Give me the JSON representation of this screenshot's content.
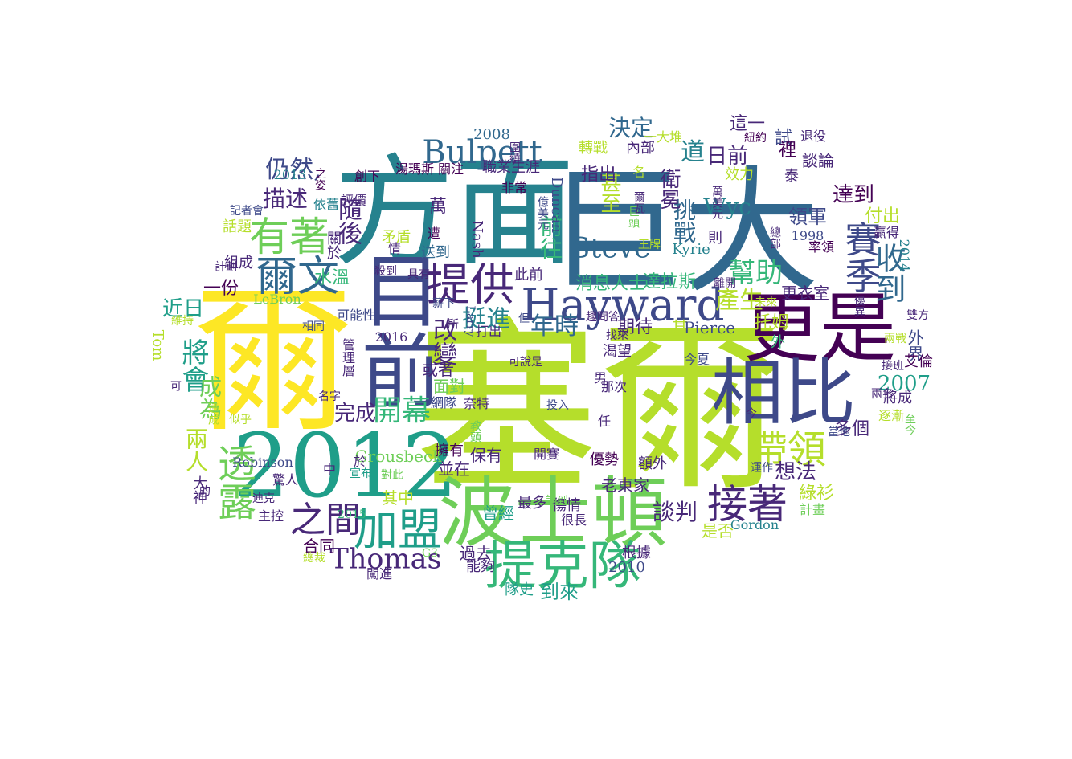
{
  "palette": [
    "#440154",
    "#482878",
    "#3e4989",
    "#31688e",
    "#26828e",
    "#1f9e89",
    "#35b779",
    "#6ece58",
    "#b5de2b",
    "#fde725"
  ],
  "words": [
    {
      "t": "塞爾",
      "c": "#b5de2b"
    },
    {
      "t": "爾",
      "c": "#fde725"
    },
    {
      "t": "巨大",
      "c": "#31688e"
    },
    {
      "t": "方面",
      "c": "#26828e"
    },
    {
      "t": "2012",
      "c": "#1f9e89"
    },
    {
      "t": "波士頓",
      "c": "#6ece58"
    },
    {
      "t": "目前",
      "c": "#3e4989"
    },
    {
      "t": "更是",
      "c": "#440154"
    },
    {
      "t": "相比",
      "c": "#3e4989"
    },
    {
      "t": "Hayward",
      "c": "#3e4989"
    },
    {
      "t": "提克隊",
      "c": "#35b779"
    },
    {
      "t": "提供",
      "c": "#482878"
    },
    {
      "t": "加盟",
      "c": "#1f9e89"
    },
    {
      "t": "爾文",
      "c": "#31688e"
    },
    {
      "t": "有著",
      "c": "#6ece58"
    },
    {
      "t": "接著",
      "c": "#482878"
    },
    {
      "t": "帶領",
      "c": "#b5de2b"
    },
    {
      "t": "之間",
      "c": "#482878"
    },
    {
      "t": "Thomas",
      "c": "#482878"
    },
    {
      "t": "透露",
      "c": "#6ece58"
    },
    {
      "t": "賽季",
      "c": "#3e4989"
    },
    {
      "t": "收到",
      "c": "#31688e"
    },
    {
      "t": "Bulpett",
      "c": "#31688e"
    },
    {
      "t": "Steve",
      "c": "#31688e"
    },
    {
      "t": "開幕",
      "c": "#35b779"
    },
    {
      "t": "幫助",
      "c": "#35b779"
    },
    {
      "t": "挺進",
      "c": "#26828e"
    },
    {
      "t": "年時",
      "c": "#31688e"
    },
    {
      "t": "改變",
      "c": "#482878"
    },
    {
      "t": "產生",
      "c": "#b5de2b"
    },
    {
      "t": "將會",
      "c": "#1f9e89"
    },
    {
      "t": "仍然,",
      "c": "#3e4989"
    },
    {
      "t": "描述",
      "c": "#482878"
    },
    {
      "t": "隨後",
      "c": "#482878"
    },
    {
      "t": "挑戰",
      "c": "#31688e"
    },
    {
      "t": "道",
      "c": "#26828e"
    },
    {
      "t": "日前",
      "c": "#482878"
    },
    {
      "t": "Wyc",
      "c": "#26828e"
    },
    {
      "t": "衛冕",
      "c": "#482878"
    },
    {
      "t": "決定",
      "c": "#31688e"
    },
    {
      "t": "甚至",
      "c": "#b5de2b"
    },
    {
      "t": "前往",
      "c": "#35b779"
    },
    {
      "t": "完成",
      "c": "#482878"
    },
    {
      "t": "2007",
      "c": "#1f9e89"
    },
    {
      "t": "談判",
      "c": "#482878"
    },
    {
      "t": "兩人",
      "c": "#b5de2b"
    },
    {
      "t": "成為",
      "c": "#6ece58"
    },
    {
      "t": "近日",
      "c": "#1f9e89"
    },
    {
      "t": "一份",
      "c": "#440154"
    },
    {
      "t": "水溫",
      "c": "#35b779"
    },
    {
      "t": "萬",
      "c": "#482878"
    },
    {
      "t": "指出",
      "c": "#482878"
    },
    {
      "t": "試",
      "c": "#3e4989"
    },
    {
      "t": "這一",
      "c": "#482878"
    },
    {
      "t": "裡",
      "c": "#440154"
    },
    {
      "t": "談論",
      "c": "#482878"
    },
    {
      "t": "達到",
      "c": "#440154"
    },
    {
      "t": "領軍",
      "c": "#3e4989"
    },
    {
      "t": "付出",
      "c": "#b5de2b"
    },
    {
      "t": "消息人士",
      "c": "#35b779"
    },
    {
      "t": "達拉斯",
      "c": "#35b779"
    },
    {
      "t": "更衣室",
      "c": "#482878"
    },
    {
      "t": "期待",
      "c": "#482878"
    },
    {
      "t": "基",
      "c": "#b5de2b"
    },
    {
      "t": "Pierce",
      "c": "#3e4989"
    },
    {
      "t": "托姆",
      "c": "#b5de2b"
    },
    {
      "t": "外界",
      "c": "#3e4989"
    },
    {
      "t": "想法",
      "c": "#482878"
    },
    {
      "t": "多個",
      "c": "#482878"
    },
    {
      "t": "合同",
      "c": "#440154"
    },
    {
      "t": "保有",
      "c": "#482878"
    },
    {
      "t": "曾經",
      "c": "#1f9e89"
    },
    {
      "t": "老東家",
      "c": "#482878"
    },
    {
      "t": "是否",
      "c": "#b5de2b"
    },
    {
      "t": "綠衫",
      "c": "#b5de2b"
    },
    {
      "t": "過去",
      "c": "#482878"
    },
    {
      "t": "能夠",
      "c": "#482878"
    },
    {
      "t": "到來",
      "c": "#1f9e89"
    },
    {
      "t": "隊史",
      "c": "#1f9e89"
    },
    {
      "t": "2010",
      "c": "#3e4989"
    },
    {
      "t": "根據",
      "c": "#482878"
    },
    {
      "t": "其中",
      "c": "#b5de2b"
    },
    {
      "t": "Grousbeck",
      "c": "#6ece58"
    },
    {
      "t": "並在",
      "c": "#482878"
    },
    {
      "t": "擁有",
      "c": "#440154"
    },
    {
      "t": "優勢",
      "c": "#440154"
    },
    {
      "t": "額外",
      "c": "#482878"
    },
    {
      "t": "傷情",
      "c": "#482878"
    },
    {
      "t": "最多",
      "c": "#482878"
    },
    {
      "t": "面對",
      "c": "#6ece58"
    },
    {
      "t": "或者",
      "c": "#482878"
    },
    {
      "t": "此前",
      "c": "#482878"
    },
    {
      "t": "Nash",
      "c": "#482878"
    },
    {
      "t": "Duncan",
      "c": "#3e4989"
    },
    {
      "t": "Kyrie",
      "c": "#26828e"
    },
    {
      "t": "則",
      "c": "#482878"
    },
    {
      "t": "泰",
      "c": "#482878"
    },
    {
      "t": "1998",
      "c": "#3e4989"
    },
    {
      "t": "2014",
      "c": "#26828e"
    },
    {
      "t": "Gordon",
      "c": "#26828e"
    },
    {
      "t": "2016",
      "c": "#482878"
    },
    {
      "t": "2008",
      "c": "#31688e"
    },
    {
      "t": "Tom",
      "c": "#b5de2b"
    },
    {
      "t": "LeBron",
      "c": "#6ece58"
    },
    {
      "t": "Robinson",
      "c": "#3e4989"
    },
    {
      "t": "大神",
      "c": "#482878"
    },
    {
      "t": "話題",
      "c": "#b5de2b"
    },
    {
      "t": "組成",
      "c": "#482878"
    },
    {
      "t": "矛盾",
      "c": "#b5de2b"
    },
    {
      "t": "送到",
      "c": "#31688e"
    },
    {
      "t": "關於",
      "c": "#482878"
    },
    {
      "t": "渴望",
      "c": "#482878"
    },
    {
      "t": "效力",
      "c": "#b5de2b"
    },
    {
      "t": "退役",
      "c": "#482878"
    },
    {
      "t": "率領",
      "c": "#440154"
    },
    {
      "t": "贏得",
      "c": "#482878"
    },
    {
      "t": "將成",
      "c": "#482878"
    },
    {
      "t": "艾倫",
      "c": "#440154"
    },
    {
      "t": "逐漸",
      "c": "#b5de2b"
    },
    {
      "t": "至今",
      "c": "#6ece58"
    },
    {
      "t": "計畫",
      "c": "#6ece58"
    },
    {
      "t": "轉戰",
      "c": "#b5de2b"
    },
    {
      "t": "內部",
      "c": "#482878"
    },
    {
      "t": "職業生涯",
      "c": "#482878"
    },
    {
      "t": "湯瑪斯",
      "c": "#440154"
    },
    {
      "t": "關注",
      "c": "#440154"
    },
    {
      "t": "非常",
      "c": "#440154"
    },
    {
      "t": "2013",
      "c": "#26828e"
    },
    {
      "t": "創下",
      "c": "#440154"
    },
    {
      "t": "之姿",
      "c": "#440154"
    },
    {
      "t": "記者會",
      "c": "#3e4989"
    },
    {
      "t": "評價",
      "c": "#482878"
    },
    {
      "t": "依舊",
      "c": "#26828e"
    },
    {
      "t": "遭",
      "c": "#440154"
    },
    {
      "t": "情",
      "c": "#482878"
    },
    {
      "t": "殺到",
      "c": "#482878"
    },
    {
      "t": "具有",
      "c": "#482878"
    },
    {
      "t": "可能性",
      "c": "#3e4989"
    },
    {
      "t": "打出",
      "c": "#482878"
    },
    {
      "t": "管理層",
      "c": "#482878"
    },
    {
      "t": "名字",
      "c": "#482878"
    },
    {
      "t": "網隊",
      "c": "#3e4989"
    },
    {
      "t": "奈特",
      "c": "#482878"
    },
    {
      "t": "可說是",
      "c": "#482878"
    },
    {
      "t": "投入",
      "c": "#3e4989"
    },
    {
      "t": "談到",
      "c": "#6ece58"
    },
    {
      "t": "開賽",
      "c": "#482878"
    },
    {
      "t": "男",
      "c": "#482878"
    },
    {
      "t": "那次",
      "c": "#482878"
    },
    {
      "t": "任",
      "c": "#482878"
    },
    {
      "t": "很長",
      "c": "#482878"
    },
    {
      "t": "外",
      "c": "#35b779"
    },
    {
      "t": "今夏",
      "c": "#3e4989"
    },
    {
      "t": "今",
      "c": "#482878"
    },
    {
      "t": "當他",
      "c": "#3e4989"
    },
    {
      "t": "運作",
      "c": "#3e4989"
    },
    {
      "t": "未來",
      "c": "#b5de2b"
    },
    {
      "t": "離開",
      "c": "#482878"
    },
    {
      "t": "雙方",
      "c": "#482878"
    },
    {
      "t": "兩戰",
      "c": "#b5de2b"
    },
    {
      "t": "兩名",
      "c": "#482878"
    },
    {
      "t": "接班",
      "c": "#482878"
    },
    {
      "t": "一大堆",
      "c": "#b5de2b"
    },
    {
      "t": "名",
      "c": "#b5de2b"
    },
    {
      "t": "王牌",
      "c": "#b5de2b"
    },
    {
      "t": "巨頭",
      "c": "#6ece58"
    },
    {
      "t": "億美元",
      "c": "#3e4989"
    },
    {
      "t": "萬美元",
      "c": "#482878"
    },
    {
      "t": "紐約",
      "c": "#440154"
    },
    {
      "t": "驚人",
      "c": "#482878"
    },
    {
      "t": "宣布",
      "c": "#1f9e89"
    },
    {
      "t": "對此",
      "c": "#6ece58"
    },
    {
      "t": "2015",
      "c": "#35b779"
    },
    {
      "t": "總裁",
      "c": "#b5de2b"
    },
    {
      "t": "闖進",
      "c": "#482878"
    },
    {
      "t": "G3",
      "c": "#6ece58"
    },
    {
      "t": "主控",
      "c": "#482878"
    },
    {
      "t": "迪克",
      "c": "#482878"
    },
    {
      "t": "的",
      "c": "#482878"
    },
    {
      "t": "中",
      "c": "#482878"
    },
    {
      "t": "於",
      "c": "#482878"
    },
    {
      "t": "可",
      "c": "#482878"
    },
    {
      "t": "維持",
      "c": "#b5de2b"
    },
    {
      "t": "計劃",
      "c": "#482878"
    },
    {
      "t": "達成",
      "c": "#b5de2b"
    },
    {
      "t": "似乎",
      "c": "#b5de2b"
    },
    {
      "t": "相同",
      "c": "#3e4989"
    },
    {
      "t": "薪下",
      "c": "#3e4989"
    },
    {
      "t": "所",
      "c": "#482878"
    },
    {
      "t": "Larry",
      "c": "#3e4989"
    },
    {
      "t": "但",
      "c": "#3e4989"
    },
    {
      "t": "圍繞",
      "c": "#482878"
    },
    {
      "t": "找來",
      "c": "#482878"
    },
    {
      "t": "教頭",
      "c": "#6ece58"
    },
    {
      "t": "爾瓦",
      "c": "#482878"
    },
    {
      "t": "優異",
      "c": "#482878"
    },
    {
      "t": "總部",
      "c": "#482878"
    },
    {
      "t": "趣問答",
      "c": "#482878"
    },
    {
      "t": "定位",
      "c": "#b5de2b"
    },
    {
      "t": "讓他",
      "c": "#482878"
    }
  ]
}
